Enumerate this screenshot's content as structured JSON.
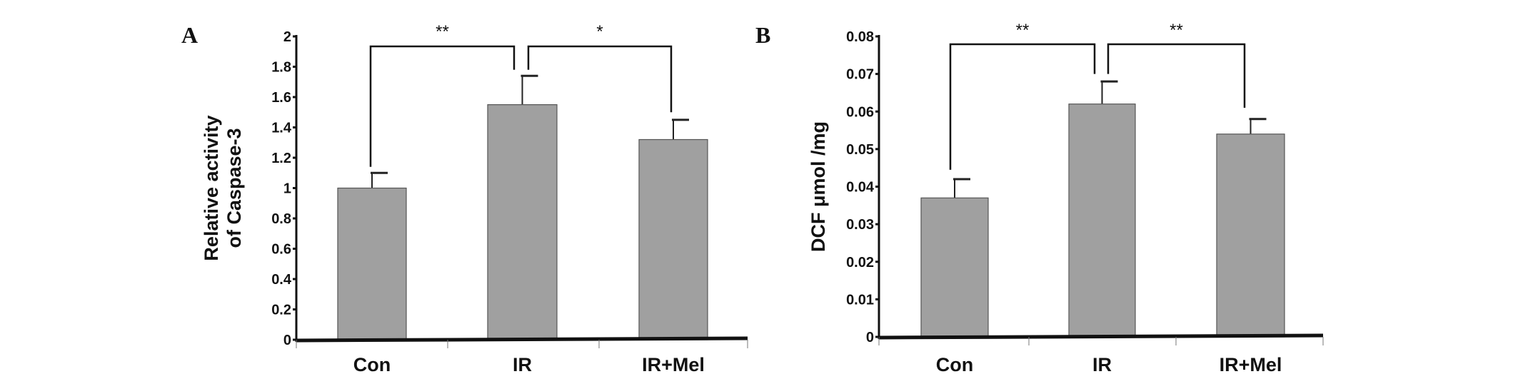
{
  "chart_data": [
    {
      "type": "bar",
      "panel_label": "A",
      "title": "",
      "xlabel": "",
      "ylabel_lines": [
        "Relative activity",
        "of Caspase-3"
      ],
      "categories": [
        "Con",
        "IR",
        "IR+Mel"
      ],
      "values": [
        1.0,
        1.55,
        1.32
      ],
      "error_upper": [
        1.1,
        1.74,
        1.45
      ],
      "ylim": [
        0,
        2
      ],
      "yticks": [
        "0",
        "0.2",
        "0.4",
        "0.6",
        "0.8",
        "1",
        "1.2",
        "1.4",
        "1.6",
        "1.8",
        "2"
      ],
      "ytick_values": [
        0,
        0.2,
        0.4,
        0.6,
        0.8,
        1.0,
        1.2,
        1.4,
        1.6,
        1.8,
        2.0
      ],
      "grid": false,
      "bar_color": "#a0a0a0",
      "significance": [
        {
          "from": "Con",
          "to": "IR",
          "label": "**"
        },
        {
          "from": "IR",
          "to": "IR+Mel",
          "label": "*"
        }
      ]
    },
    {
      "type": "bar",
      "panel_label": "B",
      "title": "",
      "xlabel": "",
      "ylabel_lines": [
        "DCF  μmol /mg"
      ],
      "categories": [
        "Con",
        "IR",
        "IR+Mel"
      ],
      "values": [
        0.037,
        0.062,
        0.054
      ],
      "error_upper": [
        0.042,
        0.068,
        0.058
      ],
      "ylim": [
        0,
        0.08
      ],
      "yticks": [
        "0",
        "0.01",
        "0.02",
        "0.03",
        "0.04",
        "0.05",
        "0.06",
        "0.07",
        "0.08"
      ],
      "ytick_values": [
        0,
        0.01,
        0.02,
        0.03,
        0.04,
        0.05,
        0.06,
        0.07,
        0.08
      ],
      "grid": false,
      "bar_color": "#a0a0a0",
      "significance": [
        {
          "from": "Con",
          "to": "IR",
          "label": "**"
        },
        {
          "from": "IR",
          "to": "IR+Mel",
          "label": "**"
        }
      ]
    }
  ]
}
